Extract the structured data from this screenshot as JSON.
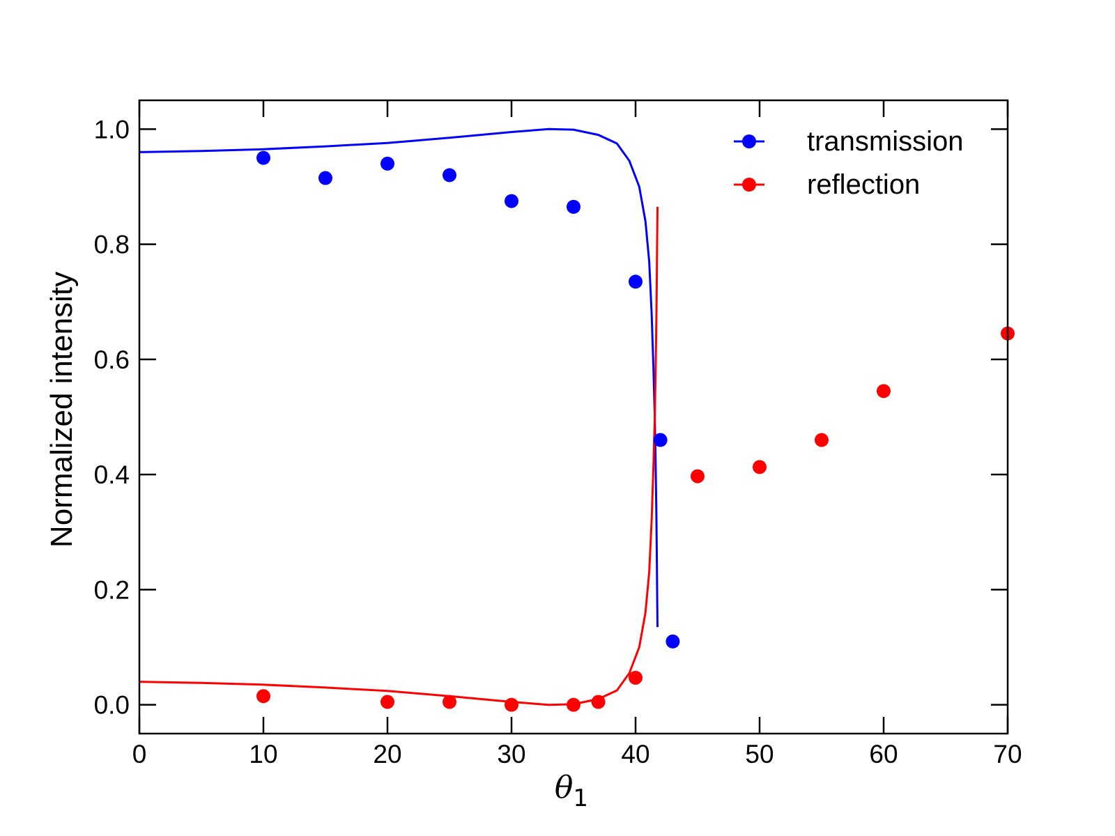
{
  "chart_data": {
    "type": "scatter",
    "xlabel_symbol": "θ",
    "xlabel_subscript": "1",
    "ylabel": "Normalized intensity",
    "xlim": [
      0,
      70
    ],
    "ylim": [
      -0.05,
      1.05
    ],
    "x_ticks": [
      "0",
      "10",
      "20",
      "30",
      "40",
      "50",
      "60",
      "70"
    ],
    "y_ticks": [
      "0.0",
      "0.2",
      "0.4",
      "0.6",
      "0.8",
      "1.0"
    ],
    "legend_position": "top-right",
    "series": [
      {
        "name": "transmission",
        "color": "#0000ff",
        "points": [
          {
            "x": 10,
            "y": 0.95
          },
          {
            "x": 15,
            "y": 0.915
          },
          {
            "x": 20,
            "y": 0.94
          },
          {
            "x": 25,
            "y": 0.92
          },
          {
            "x": 30,
            "y": 0.875
          },
          {
            "x": 35,
            "y": 0.865
          },
          {
            "x": 40,
            "y": 0.735
          },
          {
            "x": 42,
            "y": 0.46
          },
          {
            "x": 43,
            "y": 0.11
          }
        ],
        "curve": [
          [
            0,
            0.96
          ],
          [
            5,
            0.962
          ],
          [
            10,
            0.965
          ],
          [
            15,
            0.97
          ],
          [
            20,
            0.976
          ],
          [
            25,
            0.985
          ],
          [
            30,
            0.995
          ],
          [
            33,
            1.0
          ],
          [
            35,
            0.999
          ],
          [
            37,
            0.99
          ],
          [
            38.5,
            0.975
          ],
          [
            39.5,
            0.945
          ],
          [
            40.3,
            0.9
          ],
          [
            40.8,
            0.84
          ],
          [
            41.1,
            0.77
          ],
          [
            41.3,
            0.68
          ],
          [
            41.45,
            0.58
          ],
          [
            41.55,
            0.5
          ],
          [
            41.62,
            0.42
          ],
          [
            41.68,
            0.33
          ],
          [
            41.72,
            0.25
          ],
          [
            41.75,
            0.18
          ],
          [
            41.77,
            0.135
          ]
        ]
      },
      {
        "name": "reflection",
        "color": "#ff0000",
        "points": [
          {
            "x": 10,
            "y": 0.015
          },
          {
            "x": 20,
            "y": 0.005
          },
          {
            "x": 25,
            "y": 0.005
          },
          {
            "x": 30,
            "y": 0.0
          },
          {
            "x": 35,
            "y": 0.0
          },
          {
            "x": 37,
            "y": 0.005
          },
          {
            "x": 40,
            "y": 0.047
          },
          {
            "x": 45,
            "y": 0.397
          },
          {
            "x": 50,
            "y": 0.413
          },
          {
            "x": 55,
            "y": 0.46
          },
          {
            "x": 60,
            "y": 0.545
          },
          {
            "x": 70,
            "y": 0.645
          }
        ],
        "curve": [
          [
            0,
            0.04
          ],
          [
            5,
            0.038
          ],
          [
            10,
            0.035
          ],
          [
            15,
            0.03
          ],
          [
            20,
            0.024
          ],
          [
            25,
            0.015
          ],
          [
            30,
            0.005
          ],
          [
            33,
            0.0
          ],
          [
            35,
            0.001
          ],
          [
            37,
            0.01
          ],
          [
            38.5,
            0.025
          ],
          [
            39.5,
            0.055
          ],
          [
            40.3,
            0.1
          ],
          [
            40.8,
            0.16
          ],
          [
            41.1,
            0.23
          ],
          [
            41.3,
            0.32
          ],
          [
            41.45,
            0.42
          ],
          [
            41.55,
            0.5
          ],
          [
            41.62,
            0.58
          ],
          [
            41.68,
            0.67
          ],
          [
            41.72,
            0.75
          ],
          [
            41.75,
            0.82
          ],
          [
            41.77,
            0.865
          ]
        ]
      }
    ]
  }
}
